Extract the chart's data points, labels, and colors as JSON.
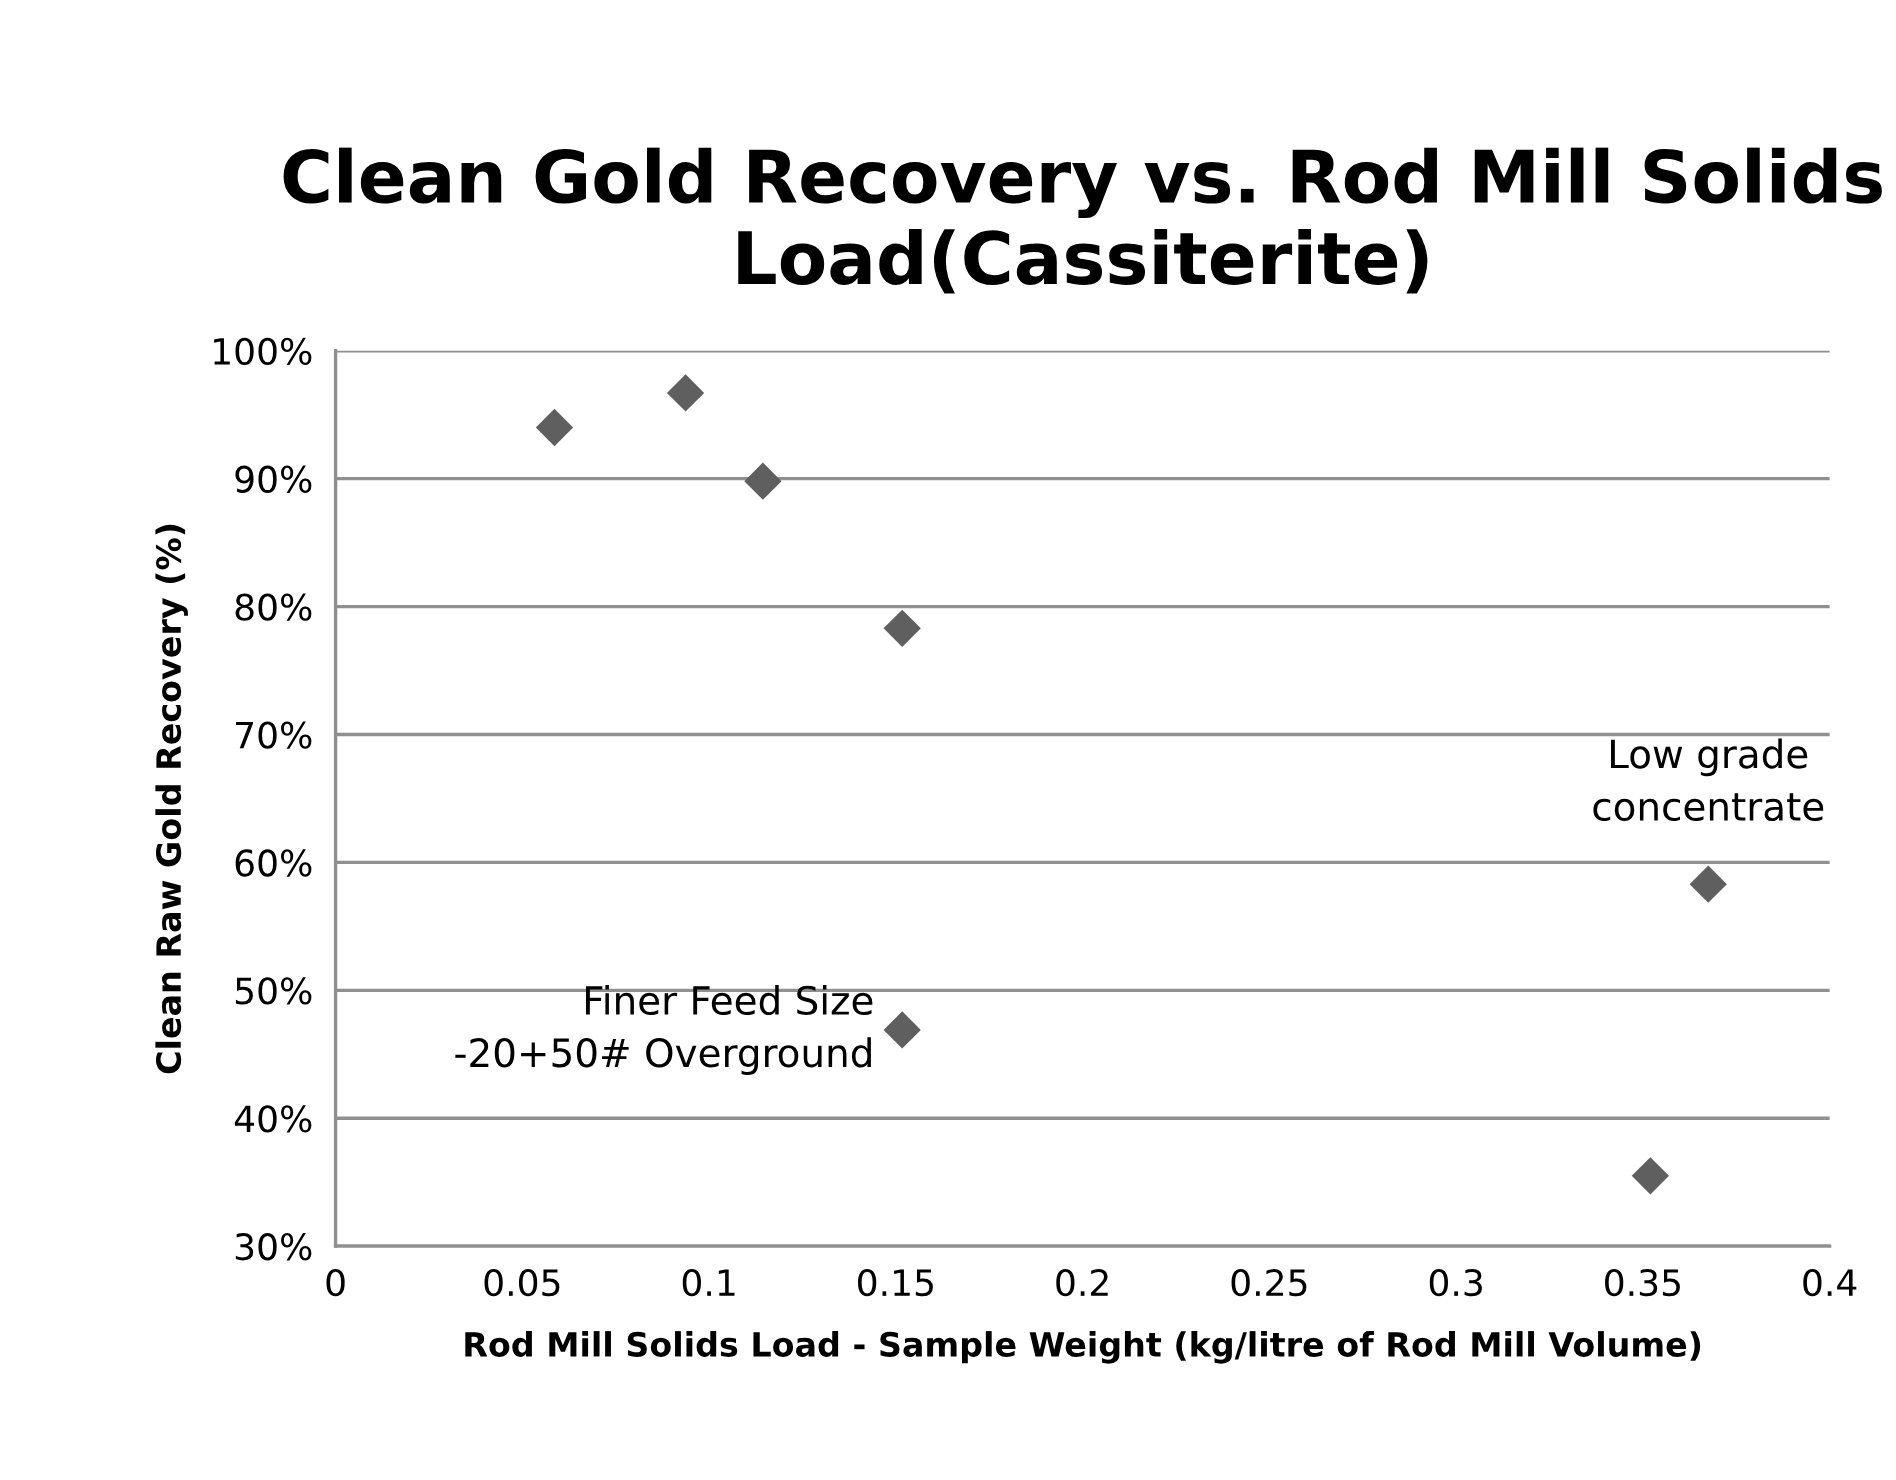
{
  "chart_data": {
    "type": "scatter",
    "title": "Clean Gold Recovery vs. Rod Mill Solids Load(Cassiterite)",
    "xlabel": "Rod Mill Solids Load - Sample Weight (kg/litre of Rod Mill Volume)",
    "ylabel": "Clean Raw Gold Recovery (%)",
    "x": [
      0.0586,
      0.0937,
      0.1144,
      0.1517,
      0.1517,
      0.3675,
      0.352
    ],
    "values": [
      94.0,
      96.7,
      89.8,
      78.3,
      46.9,
      58.3,
      35.5
    ],
    "color": "#5f5f5f",
    "marker": "diamond",
    "xlim": [
      0,
      0.4
    ],
    "xticks": [
      0,
      0.05,
      0.1,
      0.15,
      0.2,
      0.25,
      0.3,
      0.35,
      0.4
    ],
    "ylim": [
      30,
      100
    ],
    "yticks": [
      {
        "value": 30,
        "label": "30%"
      },
      {
        "value": 40,
        "label": "40%"
      },
      {
        "value": 50,
        "label": "50%"
      },
      {
        "value": 60,
        "label": "60%"
      },
      {
        "value": 70,
        "label": "70%"
      },
      {
        "value": 80,
        "label": "80%"
      },
      {
        "value": 90,
        "label": "90%"
      },
      {
        "value": 100,
        "label": "100%"
      }
    ],
    "grid": "y",
    "annotations": [
      {
        "text": "Finer Feed Size\n-20+50# Overground",
        "x": 0.1517,
        "y": 46.9
      },
      {
        "text": "Low grade\nconcentrate",
        "x": 0.3675,
        "y": 58.3
      }
    ]
  }
}
